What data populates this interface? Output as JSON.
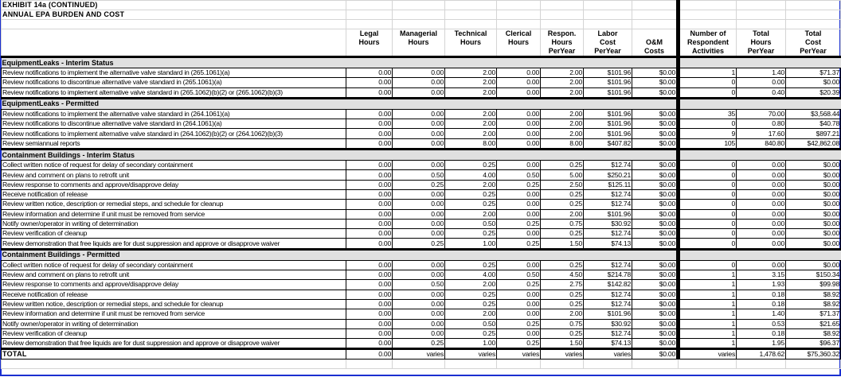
{
  "title": "EXHIBIT 14a (CONTINUED)",
  "subtitle": "ANNUAL EPA BURDEN AND COST",
  "columns": [
    [
      "Legal",
      "Hours",
      ""
    ],
    [
      "Managerial",
      "Hours",
      ""
    ],
    [
      "Technical",
      "Hours",
      ""
    ],
    [
      "Clerical",
      "Hours",
      ""
    ],
    [
      "Respon.",
      "Hours",
      "PerYear"
    ],
    [
      "Labor",
      "Cost",
      "PerYear"
    ],
    [
      "",
      "O&M",
      "Costs"
    ],
    [
      "Number of",
      "Respondent",
      "Activities"
    ],
    [
      "Total",
      "Hours",
      "PerYear"
    ],
    [
      "Total",
      "Cost",
      "PerYear"
    ]
  ],
  "sections": [
    {
      "name": "EquipmentLeaks - Interim Status",
      "rows": [
        [
          "Review notifications to implement the alternative valve standard in (265.1061)(a)",
          "0.00",
          "0.00",
          "2.00",
          "0.00",
          "2.00",
          "$101.96",
          "$0.00",
          "1",
          "1.40",
          "$71.37"
        ],
        [
          "Review notifications to discontinue alternative valve standard in (265.1061)(a)",
          "0.00",
          "0.00",
          "2.00",
          "0.00",
          "2.00",
          "$101.96",
          "$0.00",
          "0",
          "0.00",
          "$0.00"
        ],
        [
          "Review notifications to implement alternative valve standard in (265.1062)(b)(2) or (265.1062)(b)(3)",
          "0.00",
          "0.00",
          "2.00",
          "0.00",
          "2.00",
          "$101.96",
          "$0.00",
          "0",
          "0.40",
          "$20.39"
        ]
      ]
    },
    {
      "name": "EquipmentLeaks - Permitted",
      "rows": [
        [
          "Review notifications to implement the alternative valve standard in (264.1061)(a)",
          "0.00",
          "0.00",
          "2.00",
          "0.00",
          "2.00",
          "$101.96",
          "$0.00",
          "35",
          "70.00",
          "$3,568.44"
        ],
        [
          "Review notifications to discontinue alternative valve standard in (264.1061)(a)",
          "0.00",
          "0.00",
          "2.00",
          "0.00",
          "2.00",
          "$101.96",
          "$0.00",
          "0",
          "0.80",
          "$40.78"
        ],
        [
          "Review notifications to implement alternative valve standard in (264.1062)(b)(2) or (264.1062)(b)(3)",
          "0.00",
          "0.00",
          "2.00",
          "0.00",
          "2.00",
          "$101.96",
          "$0.00",
          "9",
          "17.60",
          "$897.21"
        ],
        [
          "Review semiannual reports",
          "0.00",
          "0.00",
          "8.00",
          "0.00",
          "8.00",
          "$407.82",
          "$0.00",
          "105",
          "840.80",
          "$42,862.08"
        ]
      ]
    },
    {
      "name": "Containment Buildings - Interim Status",
      "rows": [
        [
          "Collect written notice of request for delay of secondary containment",
          "0.00",
          "0.00",
          "0.25",
          "0.00",
          "0.25",
          "$12.74",
          "$0.00",
          "0",
          "0.00",
          "$0.00"
        ],
        [
          "Review and comment on plans to retrofit unit",
          "0.00",
          "0.50",
          "4.00",
          "0.50",
          "5.00",
          "$250.21",
          "$0.00",
          "0",
          "0.00",
          "$0.00"
        ],
        [
          "Review response to comments and approve/disapprove delay",
          "0.00",
          "0.25",
          "2.00",
          "0.25",
          "2.50",
          "$125.11",
          "$0.00",
          "0",
          "0.00",
          "$0.00"
        ],
        [
          "Receive notification of release",
          "0.00",
          "0.00",
          "0.25",
          "0.00",
          "0.25",
          "$12.74",
          "$0.00",
          "0",
          "0.00",
          "$0.00"
        ],
        [
          "Review written notice, description or remedial steps, and schedule for cleanup",
          "0.00",
          "0.00",
          "0.25",
          "0.00",
          "0.25",
          "$12.74",
          "$0.00",
          "0",
          "0.00",
          "$0.00"
        ],
        [
          "Review information and determine if unit must be removed from service",
          "0.00",
          "0.00",
          "2.00",
          "0.00",
          "2.00",
          "$101.96",
          "$0.00",
          "0",
          "0.00",
          "$0.00"
        ],
        [
          "Notify owner/operator in writing of determination",
          "0.00",
          "0.00",
          "0.50",
          "0.25",
          "0.75",
          "$30.92",
          "$0.00",
          "0",
          "0.00",
          "$0.00"
        ],
        [
          "Review verification of cleanup",
          "0.00",
          "0.00",
          "0.25",
          "0.00",
          "0.25",
          "$12.74",
          "$0.00",
          "0",
          "0.00",
          "$0.00"
        ],
        [
          "Review demonstration that free liquids are for dust suppression and approve or disapprove waiver",
          "0.00",
          "0.25",
          "1.00",
          "0.25",
          "1.50",
          "$74.13",
          "$0.00",
          "0",
          "0.00",
          "$0.00"
        ]
      ]
    },
    {
      "name": "Containment Buildings - Permitted",
      "rows": [
        [
          "Collect written notice of request for delay of secondary containment",
          "0.00",
          "0.00",
          "0.25",
          "0.00",
          "0.25",
          "$12.74",
          "$0.00",
          "0",
          "0.00",
          "$0.00"
        ],
        [
          "Review and comment on plans to retrofit unit",
          "0.00",
          "0.00",
          "4.00",
          "0.50",
          "4.50",
          "$214.78",
          "$0.00",
          "1",
          "3.15",
          "$150.34"
        ],
        [
          "Review response to comments and approve/disapprove delay",
          "0.00",
          "0.50",
          "2.00",
          "0.25",
          "2.75",
          "$142.82",
          "$0.00",
          "1",
          "1.93",
          "$99.98"
        ],
        [
          "Receive notification of release",
          "0.00",
          "0.00",
          "0.25",
          "0.00",
          "0.25",
          "$12.74",
          "$0.00",
          "1",
          "0.18",
          "$8.92"
        ],
        [
          "Review written notice, description or remedial steps, and schedule for cleanup",
          "0.00",
          "0.00",
          "0.25",
          "0.00",
          "0.25",
          "$12.74",
          "$0.00",
          "1",
          "0.18",
          "$8.92"
        ],
        [
          "Review information and determine if unit must be removed from service",
          "0.00",
          "0.00",
          "2.00",
          "0.00",
          "2.00",
          "$101.96",
          "$0.00",
          "1",
          "1.40",
          "$71.37"
        ],
        [
          "Notify owner/operator in writing of determination",
          "0.00",
          "0.00",
          "0.50",
          "0.25",
          "0.75",
          "$30.92",
          "$0.00",
          "1",
          "0.53",
          "$21.65"
        ],
        [
          "Review verification of cleanup",
          "0.00",
          "0.00",
          "0.25",
          "0.00",
          "0.25",
          "$12.74",
          "$0.00",
          "1",
          "0.18",
          "$8.92"
        ],
        [
          "Review demonstration that free liquids are for dust suppression and approve or disapprove waiver",
          "0.00",
          "0.25",
          "1.00",
          "0.25",
          "1.50",
          "$74.13",
          "$0.00",
          "1",
          "1.95",
          "$96.37"
        ]
      ]
    }
  ],
  "total": [
    "TOTAL",
    "0.00",
    "varies",
    "varies",
    "varies",
    "varies",
    "varies",
    "$0.00",
    "varies",
    "1,478.62",
    "$75,360.32"
  ]
}
